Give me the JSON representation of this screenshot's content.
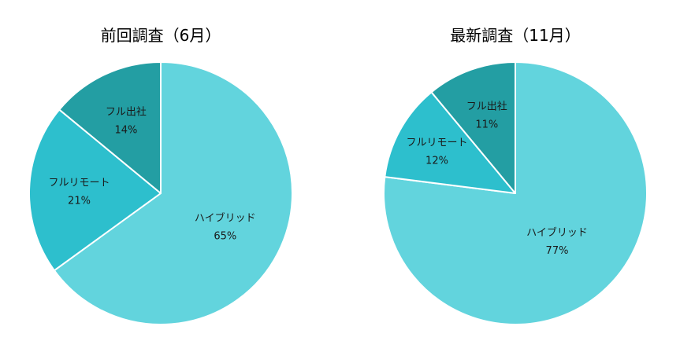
{
  "chart_data": [
    {
      "type": "pie",
      "title": "前回調査（6月）",
      "categories": [
        "ハイブリッド",
        "フルリモート",
        "フル出社"
      ],
      "values": [
        65,
        21,
        14
      ],
      "value_labels": [
        "65%",
        "21%",
        "14%"
      ],
      "colors": [
        "#62D4DD",
        "#2DBFCD",
        "#239EA3"
      ],
      "legend": "none",
      "start": "12 o'clock",
      "direction": "clockwise"
    },
    {
      "type": "pie",
      "title": "最新調査（11月）",
      "categories": [
        "ハイブリッド",
        "フルリモート",
        "フル出社"
      ],
      "values": [
        77,
        12,
        11
      ],
      "value_labels": [
        "77%",
        "12%",
        "11%"
      ],
      "colors": [
        "#62D4DD",
        "#2DBFCD",
        "#239EA3"
      ],
      "legend": "none",
      "start": "12 o'clock",
      "direction": "clockwise"
    }
  ]
}
